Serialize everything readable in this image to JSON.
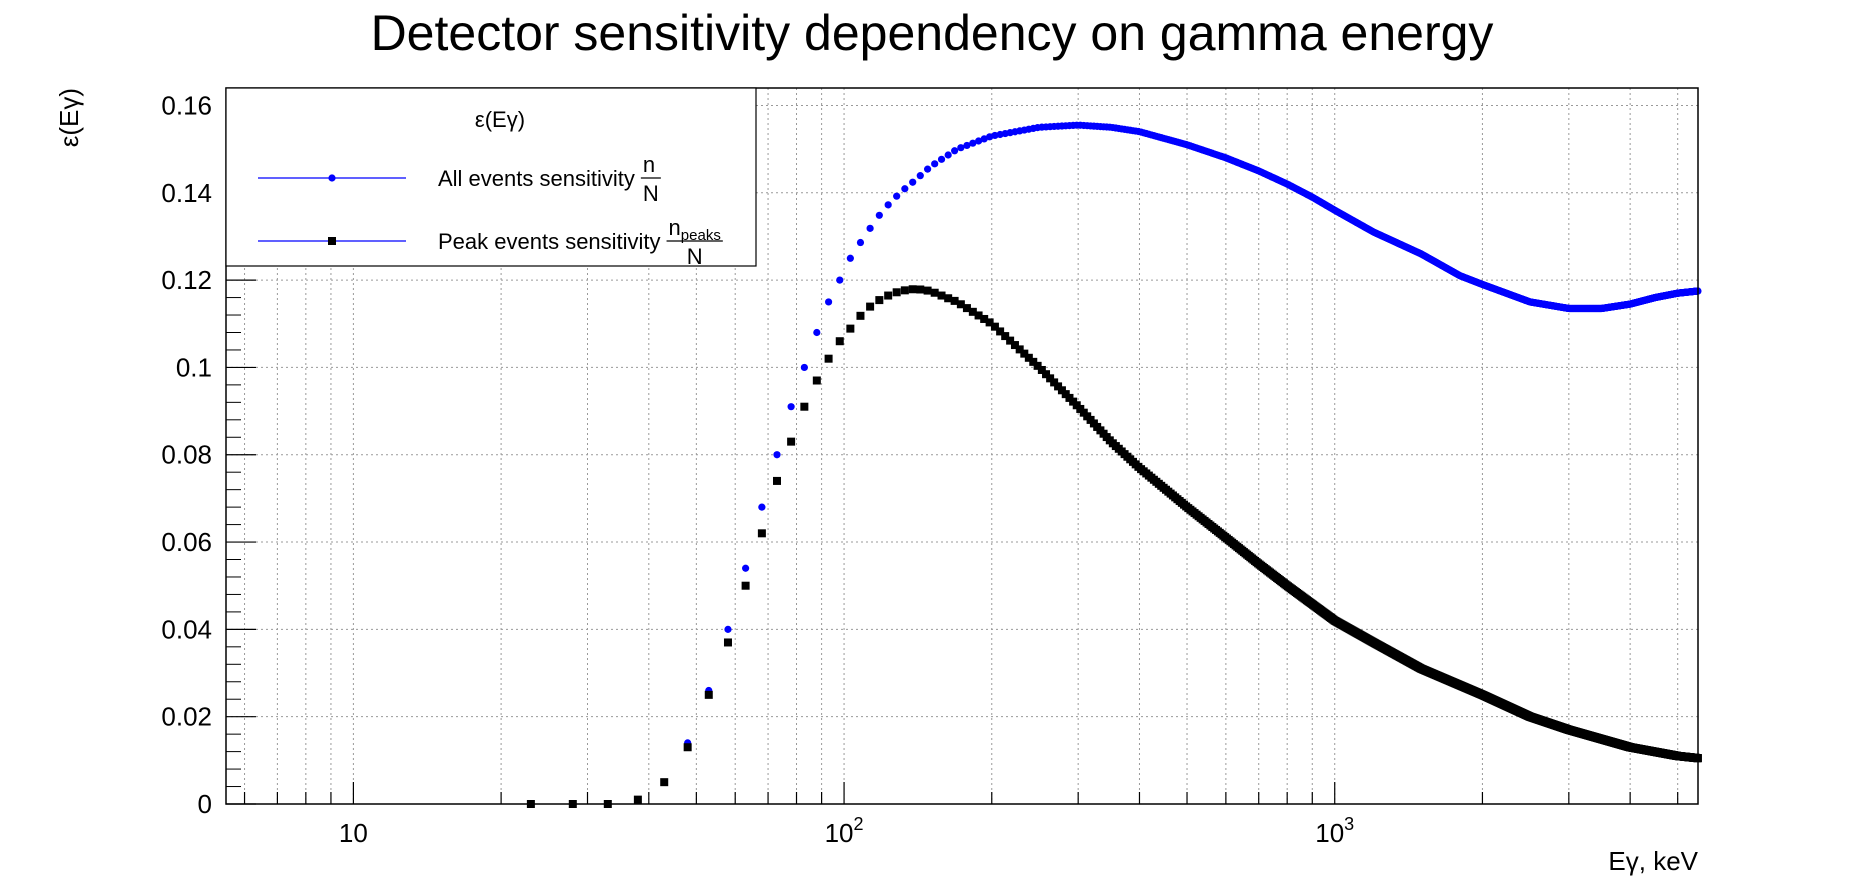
{
  "chart_data": {
    "type": "scatter",
    "title": "Detector sensitivity dependency on gamma energy",
    "xlabel": "Eγ, keV",
    "ylabel": "ε(Eγ)",
    "xscale": "log",
    "xlim": [
      5.5,
      5500
    ],
    "ylim": [
      0,
      0.164
    ],
    "grid": true,
    "x_tick_labels": [
      {
        "value": 10,
        "base": "10",
        "exp": ""
      },
      {
        "value": 100,
        "base": "10",
        "exp": "2"
      },
      {
        "value": 1000,
        "base": "10",
        "exp": "3"
      }
    ],
    "y_ticks": [
      0,
      0.02,
      0.04,
      0.06,
      0.08,
      0.1,
      0.12,
      0.14,
      0.16
    ],
    "y_tick_labels": [
      "0",
      "0.02",
      "0.04",
      "0.06",
      "0.08",
      "0.1",
      "0.12",
      "0.14",
      "0.16"
    ],
    "legend": {
      "position": "top-left",
      "header": "ε(Eγ)",
      "entries": [
        {
          "label": "All events sensitivity",
          "fraction_num": "n",
          "fraction_num_sub": "",
          "fraction_den": "N",
          "marker": "circle",
          "color": "#0000ff"
        },
        {
          "label": "Peak events sensitivity",
          "fraction_num": "n",
          "fraction_num_sub": "peaks",
          "fraction_den": "N",
          "marker": "square",
          "color": "#000000"
        }
      ]
    },
    "series": [
      {
        "name": "All events sensitivity",
        "color": "#0000ff",
        "marker": "circle",
        "points": [
          [
            23,
            0
          ],
          [
            28,
            0
          ],
          [
            33,
            0
          ],
          [
            38,
            0.001
          ],
          [
            43,
            0.005
          ],
          [
            48,
            0.014
          ],
          [
            53,
            0.026
          ],
          [
            58,
            0.04
          ],
          [
            63,
            0.054
          ],
          [
            68,
            0.068
          ],
          [
            73,
            0.08
          ],
          [
            78,
            0.091
          ],
          [
            83,
            0.1
          ],
          [
            88,
            0.108
          ],
          [
            93,
            0.115
          ],
          [
            98,
            0.12
          ],
          [
            103,
            0.125
          ],
          [
            110,
            0.13
          ],
          [
            120,
            0.136
          ],
          [
            130,
            0.14
          ],
          [
            140,
            0.143
          ],
          [
            150,
            0.146
          ],
          [
            170,
            0.15
          ],
          [
            200,
            0.153
          ],
          [
            250,
            0.155
          ],
          [
            300,
            0.1555
          ],
          [
            350,
            0.155
          ],
          [
            400,
            0.154
          ],
          [
            500,
            0.151
          ],
          [
            600,
            0.148
          ],
          [
            700,
            0.145
          ],
          [
            800,
            0.142
          ],
          [
            900,
            0.139
          ],
          [
            1000,
            0.136
          ],
          [
            1200,
            0.131
          ],
          [
            1500,
            0.126
          ],
          [
            1800,
            0.121
          ],
          [
            2000,
            0.119
          ],
          [
            2500,
            0.115
          ],
          [
            3000,
            0.1135
          ],
          [
            3500,
            0.1135
          ],
          [
            4000,
            0.1145
          ],
          [
            4500,
            0.116
          ],
          [
            5000,
            0.117
          ],
          [
            5500,
            0.1175
          ]
        ]
      },
      {
        "name": "Peak events sensitivity",
        "color": "#000000",
        "marker": "square",
        "points": [
          [
            23,
            0
          ],
          [
            28,
            0
          ],
          [
            33,
            0
          ],
          [
            38,
            0.001
          ],
          [
            43,
            0.005
          ],
          [
            48,
            0.013
          ],
          [
            53,
            0.025
          ],
          [
            58,
            0.037
          ],
          [
            63,
            0.05
          ],
          [
            68,
            0.062
          ],
          [
            73,
            0.074
          ],
          [
            78,
            0.083
          ],
          [
            83,
            0.091
          ],
          [
            88,
            0.097
          ],
          [
            93,
            0.102
          ],
          [
            98,
            0.106
          ],
          [
            105,
            0.11
          ],
          [
            110,
            0.113
          ],
          [
            120,
            0.116
          ],
          [
            130,
            0.1175
          ],
          [
            140,
            0.118
          ],
          [
            150,
            0.1175
          ],
          [
            170,
            0.115
          ],
          [
            200,
            0.11
          ],
          [
            250,
            0.1
          ],
          [
            300,
            0.091
          ],
          [
            350,
            0.083
          ],
          [
            400,
            0.077
          ],
          [
            500,
            0.068
          ],
          [
            600,
            0.061
          ],
          [
            700,
            0.055
          ],
          [
            800,
            0.05
          ],
          [
            1000,
            0.042
          ],
          [
            1200,
            0.037
          ],
          [
            1500,
            0.031
          ],
          [
            2000,
            0.025
          ],
          [
            2500,
            0.02
          ],
          [
            3000,
            0.017
          ],
          [
            4000,
            0.013
          ],
          [
            5000,
            0.011
          ],
          [
            5500,
            0.0105
          ]
        ]
      }
    ]
  }
}
